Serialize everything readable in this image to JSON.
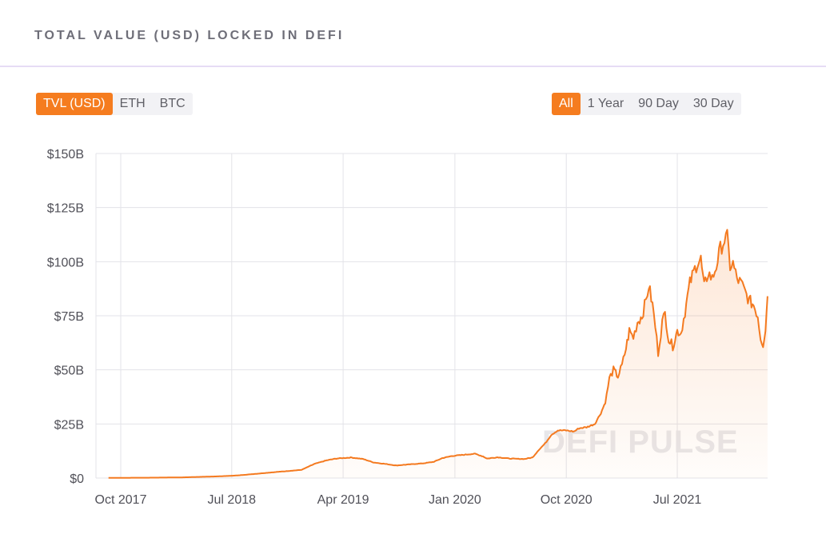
{
  "header": {
    "title": "TOTAL VALUE (USD) LOCKED IN DEFI"
  },
  "metric_tabs": [
    {
      "label": "TVL (USD)",
      "active": true
    },
    {
      "label": "ETH",
      "active": false
    },
    {
      "label": "BTC",
      "active": false
    }
  ],
  "range_tabs": [
    {
      "label": "All",
      "active": true
    },
    {
      "label": "1 Year",
      "active": false
    },
    {
      "label": "90 Day",
      "active": false
    },
    {
      "label": "30 Day",
      "active": false
    }
  ],
  "watermark": "DEFI PULSE",
  "colors": {
    "accent": "#f57c1f",
    "line": "#f47a20",
    "grid": "#e3e3e8"
  },
  "chart_data": {
    "type": "area",
    "title": "TOTAL VALUE (USD) LOCKED IN DEFI",
    "xlabel": "",
    "ylabel": "",
    "x_range": [
      "2017-09-01",
      "2021-11-24"
    ],
    "ylim": [
      0,
      150
    ],
    "y_unit": "billion USD",
    "y_ticks": [
      {
        "value": 0,
        "label": "$0"
      },
      {
        "value": 25,
        "label": "$25B"
      },
      {
        "value": 50,
        "label": "$50B"
      },
      {
        "value": 75,
        "label": "$75B"
      },
      {
        "value": 100,
        "label": "$100B"
      },
      {
        "value": 125,
        "label": "$125B"
      },
      {
        "value": 150,
        "label": "$150B"
      }
    ],
    "x_ticks": [
      {
        "date": "2017-10-01",
        "label": "Oct 2017"
      },
      {
        "date": "2018-07-01",
        "label": "Jul 2018"
      },
      {
        "date": "2019-04-01",
        "label": "Apr 2019"
      },
      {
        "date": "2020-01-01",
        "label": "Jan 2020"
      },
      {
        "date": "2020-10-01",
        "label": "Oct 2020"
      },
      {
        "date": "2021-07-01",
        "label": "Jul 2021"
      }
    ],
    "grid": true,
    "legend": "none",
    "series": [
      {
        "points": [
          [
            "2017-09-01",
            0.1
          ],
          [
            "2017-12-01",
            0.15
          ],
          [
            "2018-03-01",
            0.3
          ],
          [
            "2018-06-01",
            0.8
          ],
          [
            "2018-07-15",
            1.2
          ],
          [
            "2018-09-01",
            2.0
          ],
          [
            "2018-11-01",
            3.0
          ],
          [
            "2018-12-20",
            3.8
          ],
          [
            "2019-01-20",
            6.5
          ],
          [
            "2019-02-20",
            8.2
          ],
          [
            "2019-03-15",
            9.0
          ],
          [
            "2019-04-20",
            9.5
          ],
          [
            "2019-05-20",
            8.8
          ],
          [
            "2019-06-15",
            7.2
          ],
          [
            "2019-07-15",
            6.5
          ],
          [
            "2019-08-10",
            5.8
          ],
          [
            "2019-09-10",
            6.3
          ],
          [
            "2019-10-15",
            6.8
          ],
          [
            "2019-11-10",
            7.5
          ],
          [
            "2019-12-01",
            9.2
          ],
          [
            "2019-12-25",
            10.2
          ],
          [
            "2020-02-05",
            11.0
          ],
          [
            "2020-02-20",
            11.2
          ],
          [
            "2020-03-10",
            10.0
          ],
          [
            "2020-03-20",
            9.0
          ],
          [
            "2020-04-15",
            9.6
          ],
          [
            "2020-05-15",
            9.0
          ],
          [
            "2020-06-20",
            8.8
          ],
          [
            "2020-07-10",
            9.5
          ],
          [
            "2020-07-25",
            13.0
          ],
          [
            "2020-08-10",
            16.0
          ],
          [
            "2020-08-25",
            20.0
          ],
          [
            "2020-09-10",
            22.0
          ],
          [
            "2020-10-01",
            22.0
          ],
          [
            "2020-10-20",
            21.5
          ],
          [
            "2020-11-01",
            23.0
          ],
          [
            "2020-11-20",
            23.5
          ],
          [
            "2020-12-10",
            25.0
          ],
          [
            "2020-12-25",
            30.0
          ],
          [
            "2021-01-05",
            35.0
          ],
          [
            "2021-01-15",
            46.0
          ],
          [
            "2021-01-25",
            50.0
          ],
          [
            "2021-02-05",
            47.0
          ],
          [
            "2021-02-15",
            52.0
          ],
          [
            "2021-02-25",
            60.0
          ],
          [
            "2021-03-05",
            68.0
          ],
          [
            "2021-03-15",
            65.0
          ],
          [
            "2021-03-25",
            72.0
          ],
          [
            "2021-04-05",
            75.0
          ],
          [
            "2021-04-15",
            82.0
          ],
          [
            "2021-04-22",
            89.0
          ],
          [
            "2021-05-01",
            80.0
          ],
          [
            "2021-05-08",
            70.0
          ],
          [
            "2021-05-15",
            58.0
          ],
          [
            "2021-05-25",
            72.0
          ],
          [
            "2021-06-01",
            76.0
          ],
          [
            "2021-06-10",
            64.0
          ],
          [
            "2021-06-20",
            61.0
          ],
          [
            "2021-07-01",
            68.0
          ],
          [
            "2021-07-10",
            67.0
          ],
          [
            "2021-07-20",
            77.0
          ],
          [
            "2021-08-01",
            90.0
          ],
          [
            "2021-08-10",
            95.0
          ],
          [
            "2021-08-20",
            100.0
          ],
          [
            "2021-08-28",
            101.0
          ],
          [
            "2021-09-05",
            88.0
          ],
          [
            "2021-09-15",
            95.0
          ],
          [
            "2021-09-25",
            92.0
          ],
          [
            "2021-10-05",
            98.0
          ],
          [
            "2021-10-15",
            106.0
          ],
          [
            "2021-10-25",
            110.0
          ],
          [
            "2021-11-01",
            111.0
          ],
          [
            "2021-11-08",
            98.0
          ],
          [
            "2021-11-15",
            99.0
          ],
          [
            "2021-11-25",
            92.0
          ],
          [
            "2021-12-05",
            90.0
          ],
          [
            "2021-12-15",
            86.0
          ],
          [
            "2021-12-25",
            82.0
          ],
          [
            "2022-01-05",
            80.0
          ],
          [
            "2022-01-15",
            75.0
          ],
          [
            "2022-01-22",
            65.0
          ],
          [
            "2022-01-28",
            62.0
          ],
          [
            "2022-02-03",
            69.0
          ],
          [
            "2022-02-08",
            84.0
          ]
        ]
      }
    ]
  }
}
